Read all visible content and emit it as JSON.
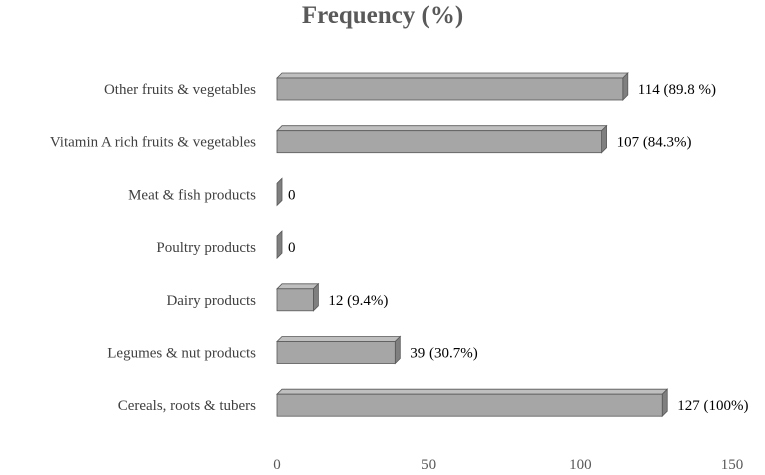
{
  "chart_data": {
    "type": "bar",
    "orientation": "horizontal",
    "title": "Frequency (%)",
    "xlabel": "",
    "ylabel": "",
    "categories": [
      "Other fruits & vegetables",
      "Vitamin A rich fruits & vegetables",
      "Meat & fish products",
      "Poultry products",
      "Dairy products",
      "Legumes & nut products",
      "Cereals, roots & tubers"
    ],
    "values": [
      114,
      107,
      0,
      0,
      12,
      39,
      127
    ],
    "data_labels": [
      "114 (89.8 %)",
      "107 (84.3%)",
      "0",
      "0",
      "12 (9.4%)",
      "39 (30.7%)",
      "127 (100%)"
    ],
    "xlim": [
      0,
      150
    ],
    "xticks": [
      0,
      50,
      100,
      150
    ],
    "grid": false,
    "legend": "none",
    "colors": {
      "bar_front": "#a6a6a6",
      "bar_top": "#bfbfbf",
      "bar_side": "#7f7f7f",
      "bar_edge": "#595959"
    }
  }
}
